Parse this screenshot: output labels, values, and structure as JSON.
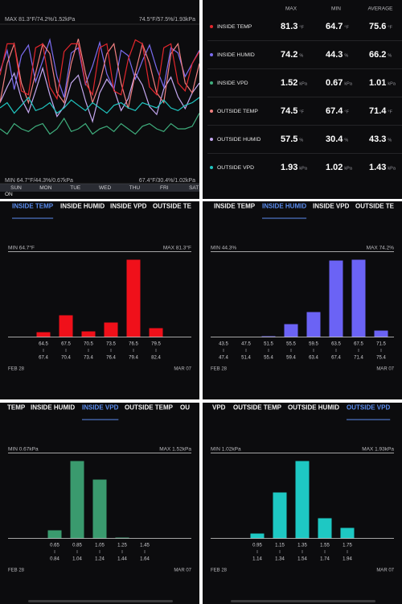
{
  "chart_data": [
    {
      "type": "line",
      "max_label": "MAX 81.3°F/74.2%/1.52kPa",
      "max_label_right": "74.5°F/57.5%/1.93kPa",
      "min_label": "MIN 64.7°F/44.3%/0.67kPa",
      "min_label_right": "67.4°F/30.4%/1.02kPa",
      "day_labels": [
        "SUN",
        "MON",
        "TUE",
        "WED",
        "THU",
        "FRI",
        "SAT"
      ],
      "status": "ON",
      "series": [
        {
          "color": "#c4a8f0",
          "ylim": [
            0,
            80
          ],
          "values": [
            40,
            48,
            55,
            42,
            35,
            46,
            57.5,
            44,
            33,
            38,
            50,
            54,
            41,
            30.4,
            45,
            52,
            47,
            36,
            42,
            55,
            49,
            38,
            34,
            47,
            53,
            43,
            37,
            45,
            50
          ]
        },
        {
          "color": "#7b6cf0",
          "ylim": [
            20,
            80
          ],
          "values": [
            62,
            70,
            55,
            68,
            72,
            58,
            66,
            74,
            60,
            52,
            69,
            71,
            57,
            64,
            73,
            61,
            55,
            70,
            68,
            59,
            66,
            72,
            63,
            56,
            71,
            69,
            60,
            65,
            70
          ]
        },
        {
          "color": "#f08080",
          "ylim": [
            60,
            76
          ],
          "values": [
            68,
            72,
            74,
            70,
            68,
            71,
            74,
            73,
            69,
            68,
            72,
            74.5,
            71,
            68,
            70,
            73,
            74,
            70,
            67.4,
            71,
            74,
            72,
            69,
            68,
            73,
            74,
            70,
            69,
            72
          ]
        },
        {
          "color": "#e3262c",
          "ylim": [
            45,
            85
          ],
          "values": [
            72,
            80,
            80,
            68,
            67,
            79,
            80,
            69,
            66,
            78,
            80,
            80,
            70,
            67,
            79,
            80,
            68,
            67,
            76,
            81,
            80,
            69,
            67,
            79,
            80,
            70,
            68,
            75,
            78
          ]
        },
        {
          "color": "#20c5c0",
          "ylim": [
            0,
            3
          ],
          "values": [
            1.4,
            1.5,
            1.3,
            1.45,
            1.6,
            1.35,
            1.4,
            1.5,
            1.3,
            1.4,
            1.55,
            1.45,
            1.35,
            1.5,
            1.4,
            1.3,
            1.45,
            1.5,
            1.4,
            1.35,
            1.5,
            1.45,
            1.4,
            1.55,
            1.4,
            1.35,
            1.45,
            1.5,
            1.6
          ]
        },
        {
          "color": "#3fae7d",
          "ylim": [
            0,
            3
          ],
          "values": [
            1.0,
            0.9,
            1.1,
            1.0,
            0.95,
            1.05,
            1.1,
            0.9,
            1.0,
            1.2,
            0.95,
            1.0,
            1.1,
            0.9,
            1.0,
            1.05,
            0.95,
            1.1,
            1.0,
            0.9,
            1.05,
            1.1,
            1.0,
            0.95,
            1.1,
            1.0,
            1.0,
            1.05,
            1.3
          ]
        }
      ]
    },
    {
      "type": "bar",
      "tabs": [
        "INSIDE TEMP",
        "INSIDE HUMID",
        "INSIDE VPD",
        "OUTSIDE TE"
      ],
      "selected_tab": 0,
      "color": "#f0101a",
      "min_label": "MIN 64.7°F",
      "max_label": "MAX 81.3°F",
      "categories": [
        "64.5",
        "67.5",
        "70.5",
        "73.5",
        "76.5",
        "79.5"
      ],
      "category_ends": [
        "67.4",
        "70.4",
        "73.4",
        "76.4",
        "79.4",
        "82.4"
      ],
      "values": [
        6,
        27,
        7,
        18,
        96,
        11
      ],
      "ylim": [
        0,
        100
      ],
      "start_label": "FEB 28",
      "end_label": "MAR 07"
    },
    {
      "type": "bar",
      "tabs": [
        "INSIDE TEMP",
        "INSIDE HUMID",
        "INSIDE VPD",
        "OUTSIDE TE"
      ],
      "selected_tab": 1,
      "color": "#6b63f5",
      "min_label": "MIN 44.3%",
      "max_label": "MAX 74.2%",
      "categories": [
        "43.5",
        "47.5",
        "51.5",
        "55.5",
        "59.5",
        "63.5",
        "67.5",
        "71.5"
      ],
      "category_ends": [
        "47.4",
        "51.4",
        "55.4",
        "59.4",
        "63.4",
        "67.4",
        "71.4",
        "75.4"
      ],
      "values": [
        0,
        0,
        1,
        16,
        31,
        95,
        96,
        8
      ],
      "ylim": [
        0,
        100
      ],
      "start_label": "FEB 28",
      "end_label": "MAR 07"
    },
    {
      "type": "bar",
      "tabs": [
        "TEMP",
        "INSIDE HUMID",
        "INSIDE VPD",
        "OUTSIDE TEMP",
        "OU"
      ],
      "selected_tab": 2,
      "color": "#3a9a6e",
      "min_label": "MIN 0.67kPa",
      "max_label": "MAX 1.52kPa",
      "categories": [
        "0.65",
        "0.85",
        "1.05",
        "1.25",
        "1.45"
      ],
      "category_ends": [
        "0.84",
        "1.04",
        "1.24",
        "1.44",
        "1.64"
      ],
      "values": [
        10,
        96,
        73,
        1,
        0
      ],
      "ylim": [
        0,
        100
      ],
      "start_label": "FEB 28",
      "end_label": "MAR 07"
    },
    {
      "type": "bar",
      "tabs": [
        "VPD",
        "OUTSIDE TEMP",
        "OUTSIDE HUMID",
        "OUTSIDE VPD"
      ],
      "selected_tab": 3,
      "color": "#1ec8c3",
      "min_label": "MIN 1.02kPa",
      "max_label": "MAX 1.93kPa",
      "categories": [
        "0.95",
        "1.15",
        "1.35",
        "1.55",
        "1.75"
      ],
      "category_ends": [
        "1.14",
        "1.34",
        "1.54",
        "1.74",
        "1.94"
      ],
      "values": [
        6,
        57,
        96,
        25,
        13
      ],
      "ylim": [
        0,
        100
      ],
      "start_label": "FEB 28",
      "end_label": "MAR 07"
    }
  ],
  "stats_table": {
    "columns": [
      "MAX",
      "MIN",
      "AVERAGE"
    ],
    "rows": [
      {
        "name": "INSIDE TEMP",
        "color": "#e3262c",
        "unit": "°F",
        "values": [
          81.3,
          64.7,
          75.6
        ]
      },
      {
        "name": "INSIDE HUMID",
        "color": "#7b6cf0",
        "unit": "%",
        "values": [
          74.2,
          44.3,
          66.2
        ]
      },
      {
        "name": "INSIDE VPD",
        "color": "#3fae7d",
        "unit": "kPa",
        "values": [
          1.52,
          0.67,
          1.01
        ]
      },
      {
        "name": "OUTSIDE TEMP",
        "color": "#f08080",
        "unit": "°F",
        "values": [
          74.5,
          67.4,
          71.4
        ]
      },
      {
        "name": "OUTSIDE HUMID",
        "color": "#c4a8f0",
        "unit": "%",
        "values": [
          57.5,
          30.4,
          43.3
        ]
      },
      {
        "name": "OUTSIDE VPD",
        "color": "#20c5c0",
        "unit": "kPa",
        "values": [
          1.93,
          1.02,
          1.43
        ]
      }
    ]
  }
}
